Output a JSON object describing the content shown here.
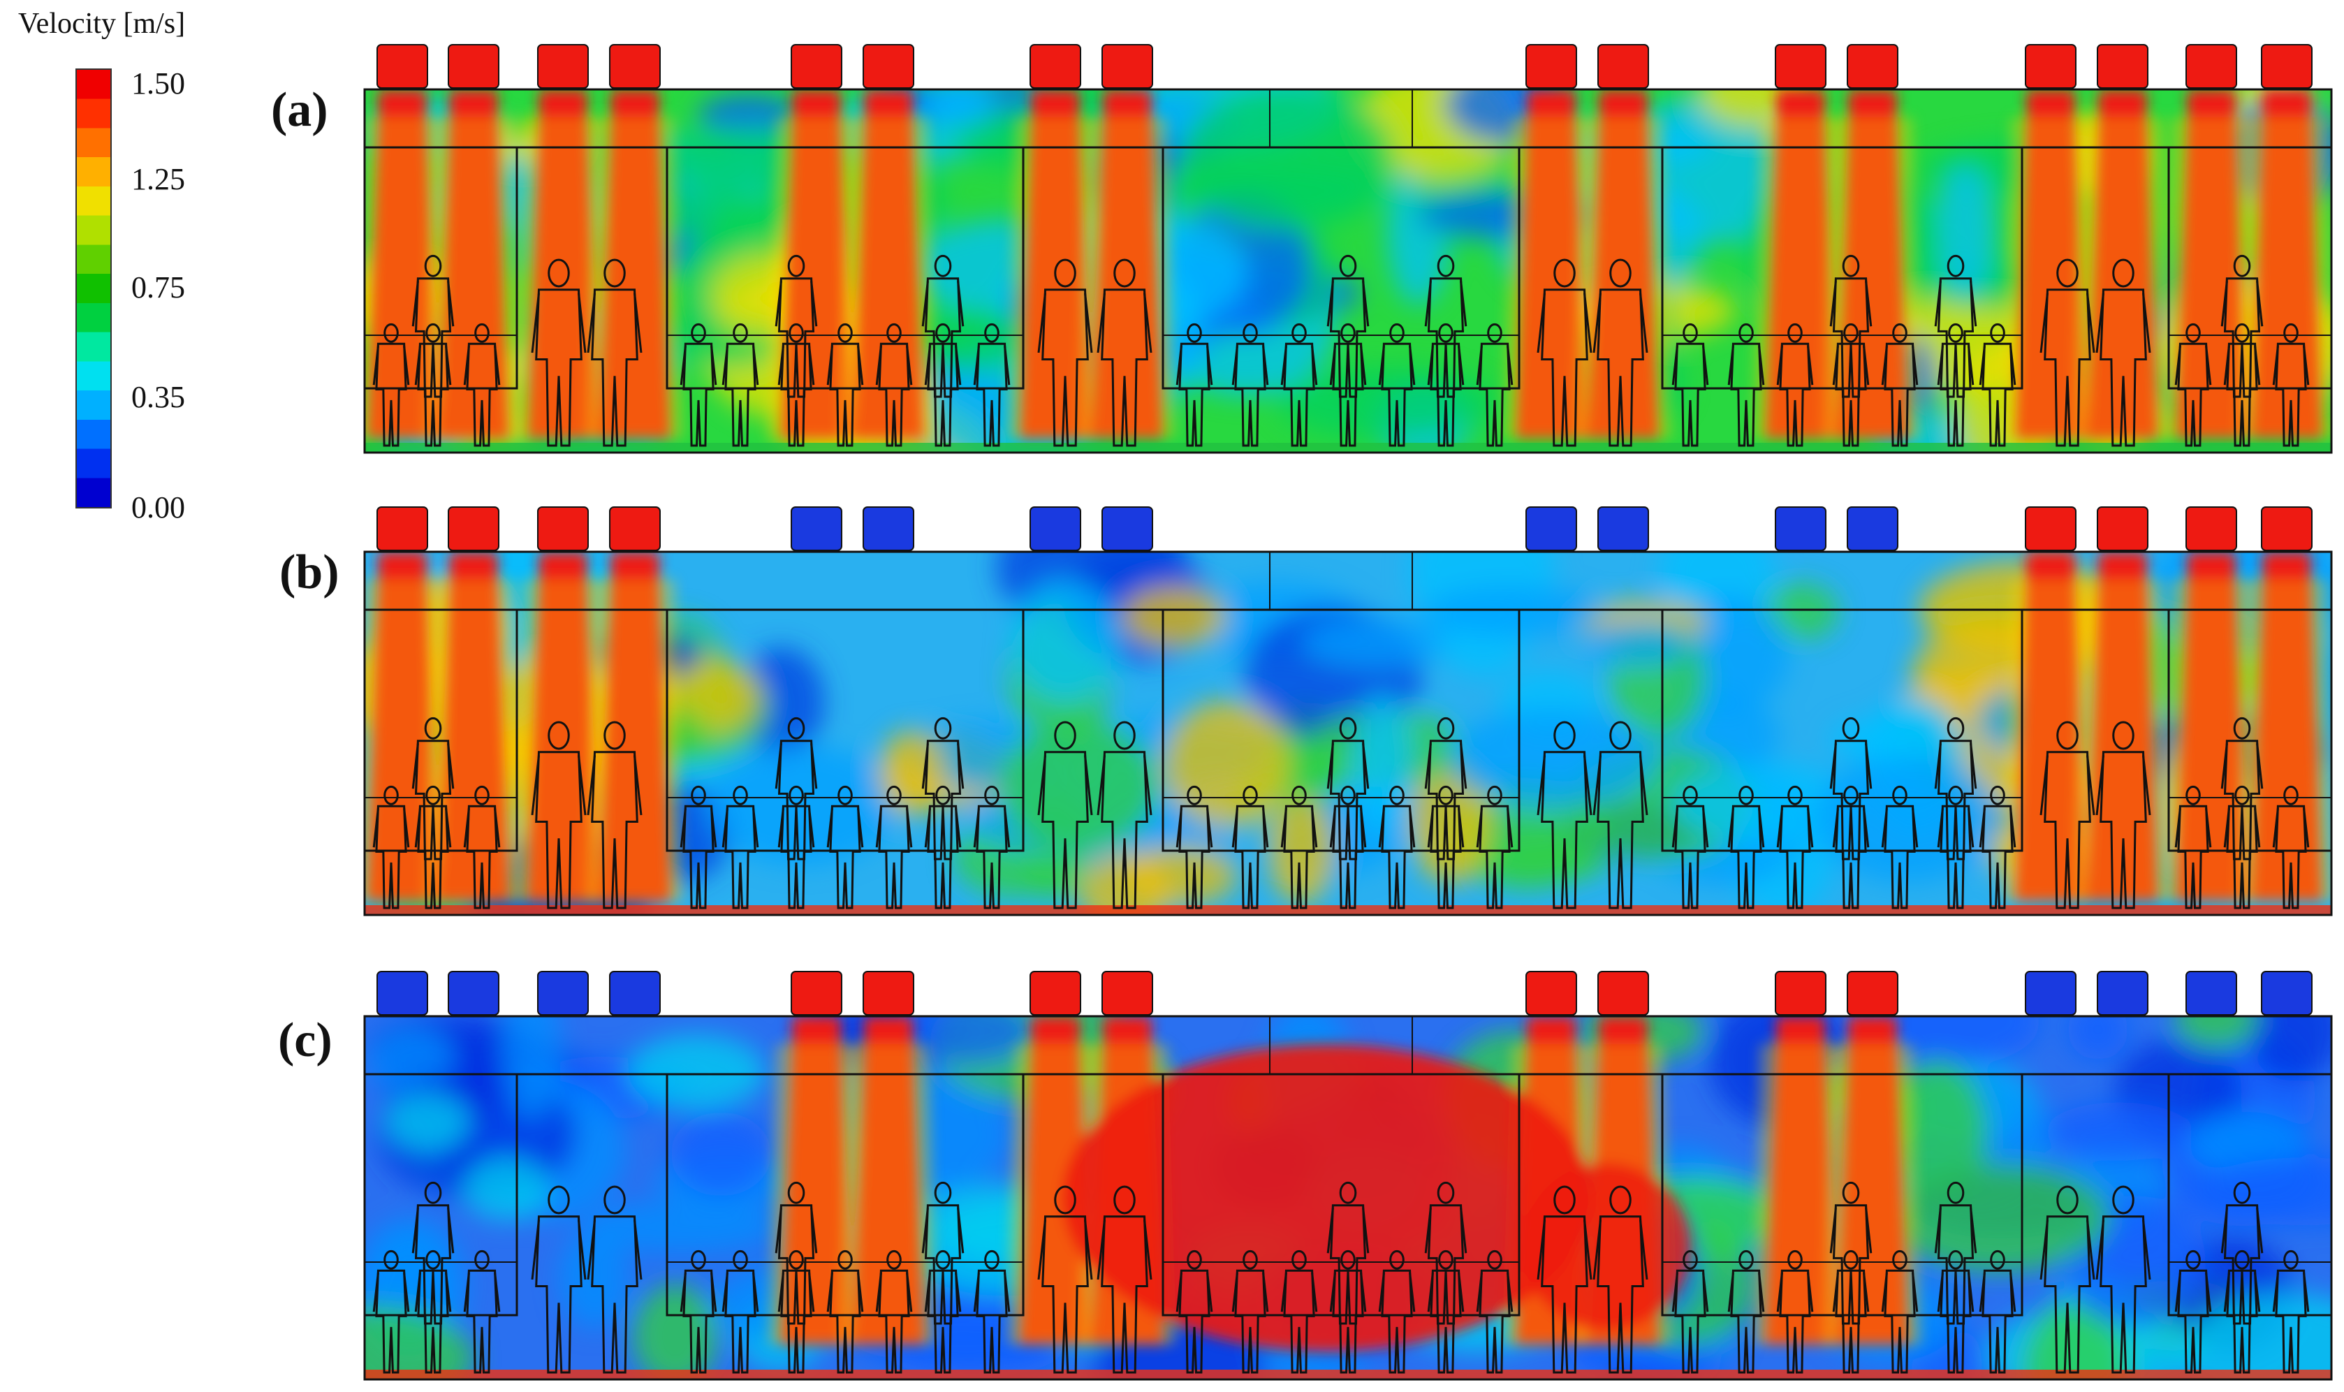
{
  "legend": {
    "title": "Velocity [m/s]",
    "ticks": [
      "1.50",
      "1.25",
      "0.75",
      "0.35",
      "0.00"
    ],
    "colors": [
      "#0000d0",
      "#0030f0",
      "#0070ff",
      "#00b0ff",
      "#00e0f0",
      "#00e8a0",
      "#00d040",
      "#10c000",
      "#60d000",
      "#b0e000",
      "#f0e000",
      "#ffb000",
      "#ff7000",
      "#ff3000",
      "#f00000"
    ]
  },
  "panels": [
    {
      "label": "(a)",
      "inlets": [
        "hot",
        "hot",
        "hot",
        "hot",
        "hot",
        "hot",
        "hot",
        "hot",
        "hot",
        "hot",
        "hot",
        "hot",
        "hot",
        "hot",
        "hot",
        "hot"
      ]
    },
    {
      "label": "(b)",
      "inlets": [
        "hot",
        "hot",
        "hot",
        "hot",
        "cold",
        "cold",
        "cold",
        "cold",
        "cold",
        "cold",
        "cold",
        "cold",
        "hot",
        "hot",
        "hot",
        "hot"
      ]
    },
    {
      "label": "(c)",
      "inlets": [
        "cold",
        "cold",
        "cold",
        "cold",
        "hot",
        "hot",
        "hot",
        "hot",
        "hot",
        "hot",
        "hot",
        "hot",
        "cold",
        "cold",
        "cold",
        "cold"
      ]
    }
  ],
  "colors": {
    "hot": "#ee1a12",
    "cold": "#1a3ae0",
    "outline": "#111111"
  }
}
